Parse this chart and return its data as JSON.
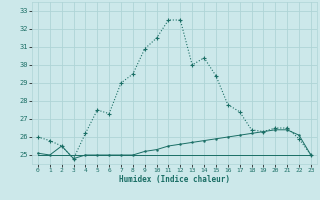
{
  "xlabel": "Humidex (Indice chaleur)",
  "xlim": [
    -0.5,
    23.5
  ],
  "ylim": [
    24.5,
    33.5
  ],
  "yticks": [
    25,
    26,
    27,
    28,
    29,
    30,
    31,
    32,
    33
  ],
  "xticks": [
    0,
    1,
    2,
    3,
    4,
    5,
    6,
    7,
    8,
    9,
    10,
    11,
    12,
    13,
    14,
    15,
    16,
    17,
    18,
    19,
    20,
    21,
    22,
    23
  ],
  "bg_color": "#cce8ea",
  "grid_color": "#afd4d6",
  "line_color": "#1a6e65",
  "series1_x": [
    0,
    1,
    2,
    3,
    4,
    5,
    6,
    7,
    8,
    9,
    10,
    11,
    12,
    13,
    14,
    15,
    16,
    17,
    18,
    19,
    20,
    21,
    22,
    23
  ],
  "series1_y": [
    26.0,
    25.8,
    25.5,
    24.8,
    26.2,
    27.5,
    27.3,
    29.0,
    29.5,
    30.9,
    31.5,
    32.5,
    32.5,
    30.0,
    30.4,
    29.4,
    27.8,
    27.4,
    26.4,
    26.3,
    26.5,
    26.5,
    25.9,
    25.0
  ],
  "series2_x": [
    0,
    1,
    2,
    3,
    4,
    5,
    6,
    7,
    8,
    9,
    10,
    11,
    12,
    13,
    14,
    15,
    16,
    17,
    18,
    19,
    20,
    21,
    22,
    23
  ],
  "series2_y": [
    25.1,
    25.0,
    25.5,
    24.8,
    25.0,
    25.0,
    25.0,
    25.0,
    25.0,
    25.2,
    25.3,
    25.5,
    25.6,
    25.7,
    25.8,
    25.9,
    26.0,
    26.1,
    26.2,
    26.3,
    26.4,
    26.4,
    26.1,
    25.0
  ],
  "series3_x": [
    0,
    1,
    2,
    3,
    4,
    5,
    6,
    7,
    8,
    9,
    10,
    11,
    12,
    13,
    14,
    15,
    16,
    17,
    18,
    19,
    20,
    21,
    22,
    23
  ],
  "series3_y": [
    25.0,
    25.0,
    25.0,
    25.0,
    25.0,
    25.0,
    25.0,
    25.0,
    25.0,
    25.0,
    25.0,
    25.0,
    25.0,
    25.0,
    25.0,
    25.0,
    25.0,
    25.0,
    25.0,
    25.0,
    25.0,
    25.0,
    25.0,
    25.0
  ]
}
